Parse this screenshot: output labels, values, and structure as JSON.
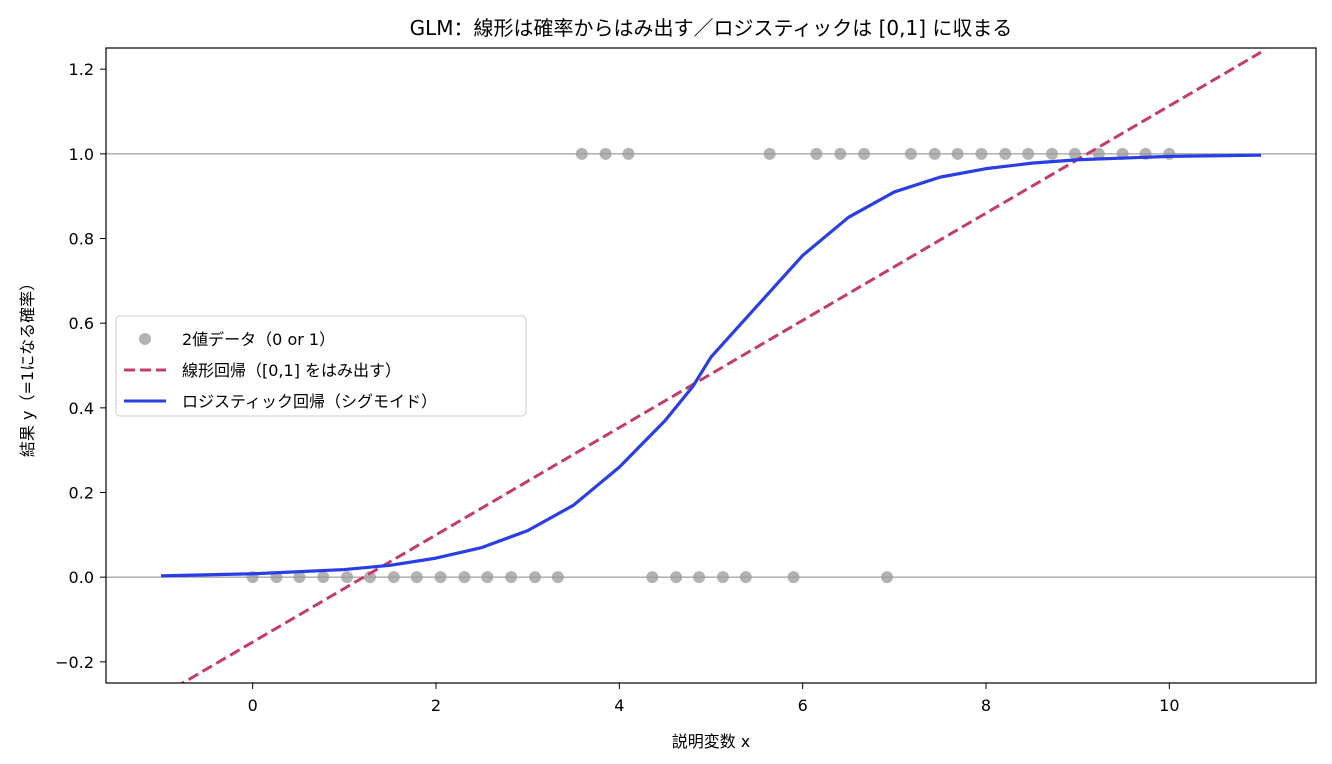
{
  "chart_data": {
    "type": "scatter",
    "title": "GLM：線形は確率からはみ出す／ロジスティックは [0,1] に収まる",
    "xlabel": "説明変数 x",
    "ylabel": "結果 y（=1になる確率）",
    "xlim": [
      -1.6,
      11.6
    ],
    "ylim": [
      -0.25,
      1.25
    ],
    "xticks": [
      0,
      2,
      4,
      6,
      8,
      10
    ],
    "yticks": [
      -0.2,
      0.0,
      0.2,
      0.4,
      0.6,
      0.8,
      1.0,
      1.2
    ],
    "xtick_labels": [
      "0",
      "2",
      "4",
      "6",
      "8",
      "10"
    ],
    "ytick_labels": [
      "−0.2",
      "0.0",
      "0.2",
      "0.4",
      "0.6",
      "0.8",
      "1.0",
      "1.2"
    ],
    "reference_lines_y": [
      0,
      1
    ],
    "legend_position": "center-left",
    "series": [
      {
        "name": "2値データ（0 or 1）",
        "kind": "scatter",
        "color": "#999999",
        "points": [
          [
            0.0,
            0
          ],
          [
            0.26,
            0
          ],
          [
            0.51,
            0
          ],
          [
            0.77,
            0
          ],
          [
            1.03,
            0
          ],
          [
            1.28,
            0
          ],
          [
            1.54,
            0
          ],
          [
            1.79,
            0
          ],
          [
            2.05,
            0
          ],
          [
            2.31,
            0
          ],
          [
            2.56,
            0
          ],
          [
            2.82,
            0
          ],
          [
            3.08,
            0
          ],
          [
            3.33,
            0
          ],
          [
            3.59,
            1
          ],
          [
            3.85,
            1
          ],
          [
            4.1,
            1
          ],
          [
            4.36,
            0
          ],
          [
            4.62,
            0
          ],
          [
            4.87,
            0
          ],
          [
            5.13,
            0
          ],
          [
            5.38,
            0
          ],
          [
            5.64,
            1
          ],
          [
            5.9,
            0
          ],
          [
            6.15,
            1
          ],
          [
            6.41,
            1
          ],
          [
            6.67,
            1
          ],
          [
            6.92,
            0
          ],
          [
            7.18,
            1
          ],
          [
            7.44,
            1
          ],
          [
            7.69,
            1
          ],
          [
            7.95,
            1
          ],
          [
            8.21,
            1
          ],
          [
            8.46,
            1
          ],
          [
            8.72,
            1
          ],
          [
            8.97,
            1
          ],
          [
            9.23,
            1
          ],
          [
            9.49,
            1
          ],
          [
            9.74,
            1
          ],
          [
            10.0,
            1
          ]
        ]
      },
      {
        "name": "線形回帰（[0,1] をはみ出す）",
        "kind": "line",
        "style": "dashed",
        "color": "#c43c6c",
        "x": [
          -1.0,
          11.0
        ],
        "y": [
          -0.28,
          1.24
        ]
      },
      {
        "name": "ロジスティック回帰（シグモイド）",
        "kind": "line",
        "style": "solid",
        "color": "#2a3ee6",
        "x": [
          -1.0,
          0.0,
          1.0,
          1.5,
          2.0,
          2.5,
          3.0,
          3.5,
          4.0,
          4.5,
          4.8,
          5.0,
          5.5,
          6.0,
          6.5,
          7.0,
          7.5,
          8.0,
          8.5,
          9.0,
          10.0,
          11.0
        ],
        "y": [
          0.003,
          0.008,
          0.018,
          0.028,
          0.045,
          0.07,
          0.11,
          0.17,
          0.26,
          0.37,
          0.45,
          0.52,
          0.64,
          0.76,
          0.85,
          0.91,
          0.945,
          0.965,
          0.978,
          0.986,
          0.994,
          0.997
        ]
      }
    ]
  }
}
